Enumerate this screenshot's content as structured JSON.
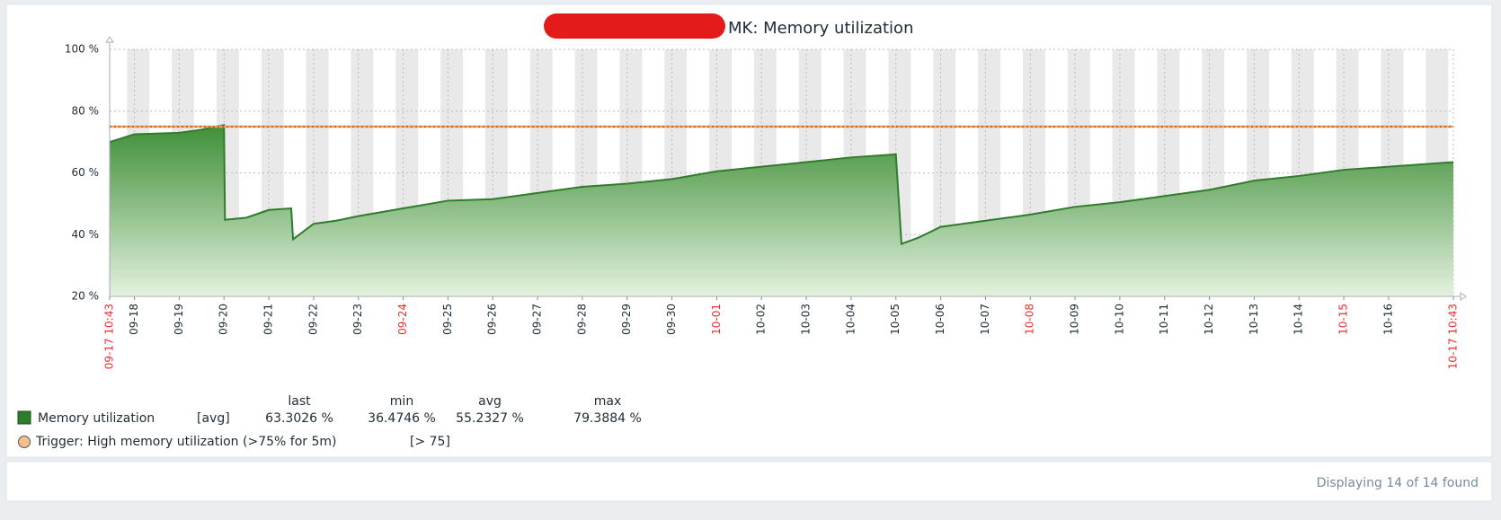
{
  "chart_data": {
    "type": "area",
    "title": "MK: Memory utilization",
    "x": [
      "09-17 10:43",
      "09-18 00:00",
      "09-19 00:00",
      "09-19 12:00",
      "09-20 00:00",
      "09-20 00:30",
      "09-20 12:00",
      "09-21 00:00",
      "09-21 12:00",
      "09-21 13:00",
      "09-22 00:00",
      "09-22 12:00",
      "09-23 00:00",
      "09-24 00:00",
      "09-25 00:00",
      "09-26 00:00",
      "09-27 00:00",
      "09-28 00:00",
      "09-29 00:00",
      "09-30 00:00",
      "10-01 00:00",
      "10-02 00:00",
      "10-03 00:00",
      "10-04 00:00",
      "10-05 00:00",
      "10-05 03:00",
      "10-05 12:00",
      "10-06 00:00",
      "10-07 00:00",
      "10-08 00:00",
      "10-09 00:00",
      "10-10 00:00",
      "10-11 00:00",
      "10-12 00:00",
      "10-13 00:00",
      "10-14 00:00",
      "10-15 00:00",
      "10-16 00:00",
      "10-17 10:43"
    ],
    "series": [
      {
        "name": "Memory utilization",
        "color": "#2e7d2a",
        "values": [
          70,
          72.5,
          73,
          74,
          75.5,
          44.8,
          45.5,
          48,
          48.5,
          38.5,
          43.5,
          44.5,
          46,
          48.5,
          51,
          51.5,
          53.5,
          55.5,
          56.5,
          58,
          60.5,
          62,
          63.5,
          65,
          66,
          37,
          39,
          42.5,
          44.5,
          46.5,
          49,
          50.5,
          52.5,
          54.5,
          57.5,
          59,
          61,
          62,
          63.5
        ]
      }
    ],
    "xlim": [
      "09-17 10:43",
      "10-17 10:43"
    ],
    "xticks": [
      "09-18",
      "09-19",
      "09-20",
      "09-21",
      "09-22",
      "09-23",
      "09-25",
      "09-26",
      "09-27",
      "09-28",
      "09-29",
      "09-30",
      "10-02",
      "10-03",
      "10-04",
      "10-05",
      "10-06",
      "10-07",
      "10-09",
      "10-10",
      "10-11",
      "10-12",
      "10-13",
      "10-14",
      "10-16"
    ],
    "xticks_major": [
      "09-17 10:43",
      "09-24",
      "10-01",
      "10-08",
      "10-15",
      "10-17 10:43"
    ],
    "major_tick_color": "#e83030",
    "ylim": [
      20,
      100
    ],
    "yticks": [
      {
        "value": 20,
        "label": "20 %"
      },
      {
        "value": 40,
        "label": "40 %"
      },
      {
        "value": 60,
        "label": "60 %"
      },
      {
        "value": 80,
        "label": "80 %"
      },
      {
        "value": 100,
        "label": "100 %"
      }
    ],
    "grid": true,
    "threshold": {
      "value": 75,
      "color": "#f0a060"
    },
    "legend": {
      "headers": [
        "last",
        "min",
        "avg",
        "max"
      ],
      "function": "[avg]",
      "stats": [
        "63.3026 %",
        "36.4746 %",
        "55.2327 %",
        "79.3884 %"
      ],
      "trigger": "Trigger: High memory utilization (>75% for 5m)",
      "trigger_condition": "[> 75]"
    }
  },
  "footer": "Displaying 14 of 14 found"
}
